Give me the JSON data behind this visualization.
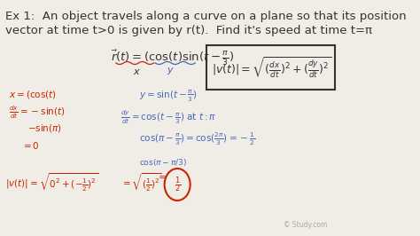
{
  "background_color": "#f0ede6",
  "title_text": "Ex 1:  An object travels along a curve on a plane so that its position\nvector at time t>0 is given by r(t).  Find it's speed at time t=π",
  "title_fontsize": 9.5,
  "title_color": "#222222",
  "red_color": "#cc2200",
  "blue_color": "#4466bb",
  "dark_color": "#333333",
  "box_color": "#333333",
  "watermark": "© Study.com",
  "watermark_color": "#aaaaaa",
  "watermark_fontsize": 5.5
}
